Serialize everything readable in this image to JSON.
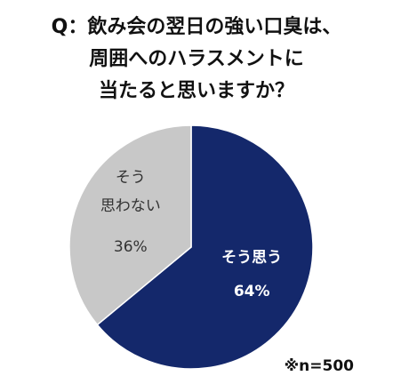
{
  "chart_data": {
    "type": "pie",
    "title": [
      "Q：飲み会の翌日の強い口臭は、",
      "周囲へのハラスメントに",
      "当たると思いますか？"
    ],
    "categories": [
      "そう思う",
      "そう\n思わない"
    ],
    "values": [
      64,
      36
    ],
    "value_labels": [
      "64%",
      "36%"
    ],
    "colors": [
      "#14286b",
      "#c8c8c8"
    ],
    "label_colors": [
      "#ffffff",
      "#333333"
    ],
    "annotation": "※n=500"
  }
}
